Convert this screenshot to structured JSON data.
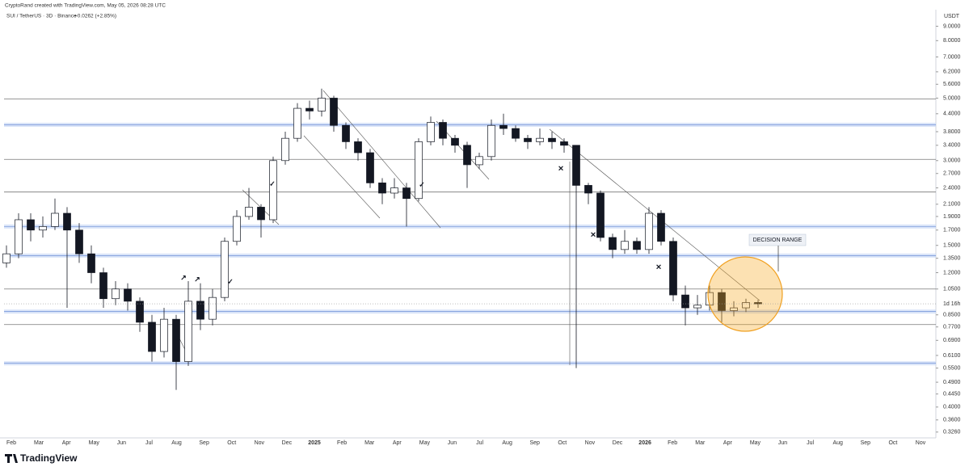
{
  "header": {
    "attribution": "CryptoRand created with TradingView.com, May 05, 2026 08:28 UTC",
    "symbol": "SUI / TetherUS · 3D · Binance",
    "change": "+0.0262 (+2.85%)"
  },
  "chart_data": {
    "type": "candlestick",
    "log_scale": true,
    "y_unit": "USDT",
    "up_color": "#ffffff",
    "down_color": "#131722",
    "wick_color": "#131722",
    "x_axis_labels": [
      "Feb",
      "Mar",
      "Apr",
      "May",
      "Jun",
      "Jul",
      "Aug",
      "Sep",
      "Oct",
      "Nov",
      "Dec",
      "2025",
      "Feb",
      "Mar",
      "Apr",
      "May",
      "Jun",
      "Jul",
      "Aug",
      "Sep",
      "Oct",
      "Nov",
      "Dec",
      "2026",
      "Feb",
      "Mar",
      "Apr",
      "May",
      "Jun",
      "Jul",
      "Aug",
      "Sep",
      "Oct",
      "Nov"
    ],
    "open": [
      1.3,
      1.4,
      1.85,
      1.7,
      1.75,
      1.95,
      1.7,
      1.4,
      1.2,
      0.97,
      1.05,
      0.95,
      0.8,
      0.63,
      0.82,
      0.58,
      0.95,
      0.82,
      0.98,
      1.55,
      1.9,
      2.05,
      1.85,
      3.0,
      3.6,
      4.6,
      4.5,
      5.0,
      4.0,
      3.5,
      3.2,
      2.5,
      2.3,
      2.4,
      2.2,
      3.5,
      4.1,
      3.6,
      3.4,
      2.9,
      3.1,
      4.0,
      3.9,
      3.6,
      3.5,
      3.6,
      3.5,
      3.4,
      2.45,
      2.3,
      1.6,
      1.45,
      1.55,
      1.45,
      1.95,
      1.55,
      1.0,
      0.9,
      0.92,
      1.02,
      0.88,
      0.9,
      0.94
    ],
    "high": [
      1.5,
      1.95,
      1.95,
      1.9,
      2.2,
      2.05,
      1.8,
      1.5,
      1.25,
      1.12,
      1.1,
      0.98,
      0.85,
      0.9,
      0.85,
      1.12,
      1.1,
      1.05,
      1.6,
      2.0,
      2.4,
      2.1,
      3.1,
      3.8,
      4.8,
      4.9,
      5.4,
      5.1,
      4.1,
      3.6,
      3.3,
      2.6,
      2.6,
      2.5,
      3.6,
      4.3,
      4.2,
      3.7,
      3.5,
      3.2,
      4.2,
      4.4,
      4.0,
      3.7,
      3.9,
      3.8,
      3.6,
      3.4,
      2.5,
      2.35,
      1.65,
      1.7,
      1.6,
      2.05,
      2.0,
      1.6,
      1.08,
      1.0,
      1.08,
      1.05,
      0.95,
      0.97,
      0.96
    ],
    "low": [
      1.25,
      1.35,
      1.55,
      1.6,
      1.7,
      0.9,
      1.3,
      1.1,
      0.9,
      0.92,
      0.88,
      0.74,
      0.58,
      0.6,
      0.46,
      0.56,
      0.75,
      0.78,
      0.95,
      1.5,
      1.85,
      1.6,
      1.8,
      2.9,
      3.5,
      4.2,
      4.3,
      3.8,
      3.3,
      3.0,
      2.4,
      2.1,
      2.2,
      1.75,
      2.15,
      3.4,
      3.4,
      3.2,
      2.4,
      2.8,
      3.0,
      3.7,
      3.5,
      3.3,
      3.4,
      3.3,
      3.2,
      0.55,
      2.1,
      1.55,
      1.35,
      1.4,
      1.4,
      1.4,
      1.5,
      0.95,
      0.78,
      0.85,
      0.88,
      0.8,
      0.84,
      0.87,
      0.9
    ],
    "close": [
      1.4,
      1.85,
      1.7,
      1.75,
      1.95,
      1.7,
      1.4,
      1.2,
      0.97,
      1.05,
      0.95,
      0.8,
      0.63,
      0.82,
      0.58,
      0.95,
      0.82,
      0.98,
      1.55,
      1.9,
      2.05,
      1.85,
      3.0,
      3.6,
      4.6,
      4.5,
      5.0,
      4.0,
      3.5,
      3.2,
      2.5,
      2.3,
      2.4,
      2.2,
      3.5,
      4.1,
      3.6,
      3.4,
      2.9,
      3.1,
      4.0,
      3.9,
      3.6,
      3.5,
      3.6,
      3.5,
      3.4,
      2.45,
      2.3,
      1.6,
      1.45,
      1.55,
      1.45,
      1.95,
      1.55,
      1.0,
      0.9,
      0.92,
      1.02,
      0.88,
      0.9,
      0.94,
      0.93
    ],
    "ylim": [
      0.315,
      10.1
    ],
    "yticks": [
      {
        "value": 9,
        "label": "9.0000"
      },
      {
        "value": 8,
        "label": "8.0000"
      },
      {
        "value": 7,
        "label": "7.0000"
      },
      {
        "value": 6.2,
        "label": "6.2000"
      },
      {
        "value": 5.6,
        "label": "5.6000"
      },
      {
        "value": 5,
        "label": "5.0000"
      },
      {
        "value": 4.4,
        "label": "4.4000"
      },
      {
        "value": 3.8,
        "label": "3.8000"
      },
      {
        "value": 3.4,
        "label": "3.4000"
      },
      {
        "value": 3,
        "label": "3.0000"
      },
      {
        "value": 2.7,
        "label": "2.7000"
      },
      {
        "value": 2.4,
        "label": "2.4000"
      },
      {
        "value": 2.1,
        "label": "2.1000"
      },
      {
        "value": 1.9,
        "label": "1.9000"
      },
      {
        "value": 1.7,
        "label": "1.7000"
      },
      {
        "value": 1.5,
        "label": "1.5000"
      },
      {
        "value": 1.35,
        "label": "1.3500"
      },
      {
        "value": 1.2,
        "label": "1.2000"
      },
      {
        "value": 1.05,
        "label": "1.0500"
      },
      {
        "value": 0.85,
        "label": "0.8500"
      },
      {
        "value": 0.77,
        "label": "0.7700"
      },
      {
        "value": 0.69,
        "label": "0.6900"
      },
      {
        "value": 0.61,
        "label": "0.6100"
      },
      {
        "value": 0.55,
        "label": "0.5500"
      },
      {
        "value": 0.49,
        "label": "0.4900"
      },
      {
        "value": 0.445,
        "label": "0.4450"
      },
      {
        "value": 0.4,
        "label": "0.4000"
      },
      {
        "value": 0.36,
        "label": "0.3600"
      },
      {
        "value": 0.326,
        "label": "0.3260"
      }
    ],
    "levels": [
      4.96,
      3.03,
      2.32,
      1.05,
      0.785
    ],
    "zones": [
      4.02,
      1.75,
      1.38,
      0.873,
      0.572
    ],
    "current_price": 0.93,
    "countdown": "1d 16h",
    "annotation": "DECISION RANGE"
  },
  "footer": {
    "brand": "TradingView"
  }
}
